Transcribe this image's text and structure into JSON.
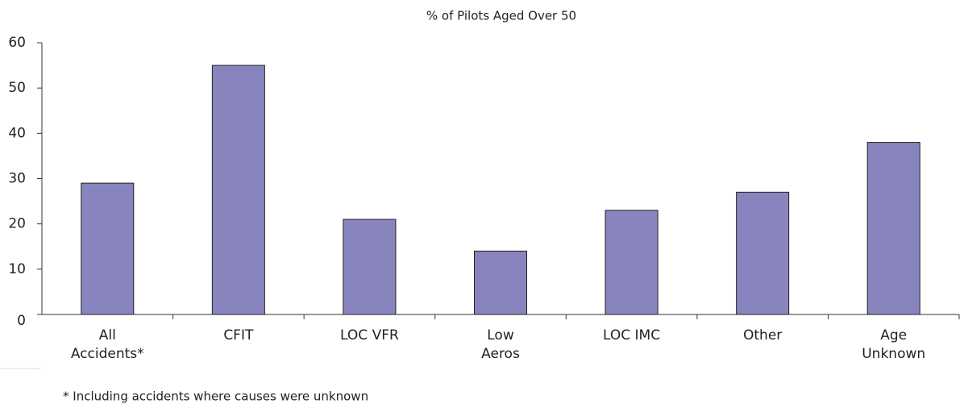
{
  "chart_data": {
    "type": "bar",
    "title": "% of Pilots Aged Over 50",
    "categories": [
      "All\nAccidents*",
      "CFIT",
      "LOC VFR",
      "Low\nAeros",
      "LOC IMC",
      "Other",
      "Age\nUnknown"
    ],
    "values": [
      29,
      55,
      21,
      14,
      23,
      27,
      38
    ],
    "color": "#8884be",
    "ylim": [
      0,
      60
    ],
    "yticks": [
      0,
      10,
      20,
      30,
      40,
      50,
      60
    ],
    "grid": false,
    "footnote": "* Including accidents where causes were unknown"
  }
}
